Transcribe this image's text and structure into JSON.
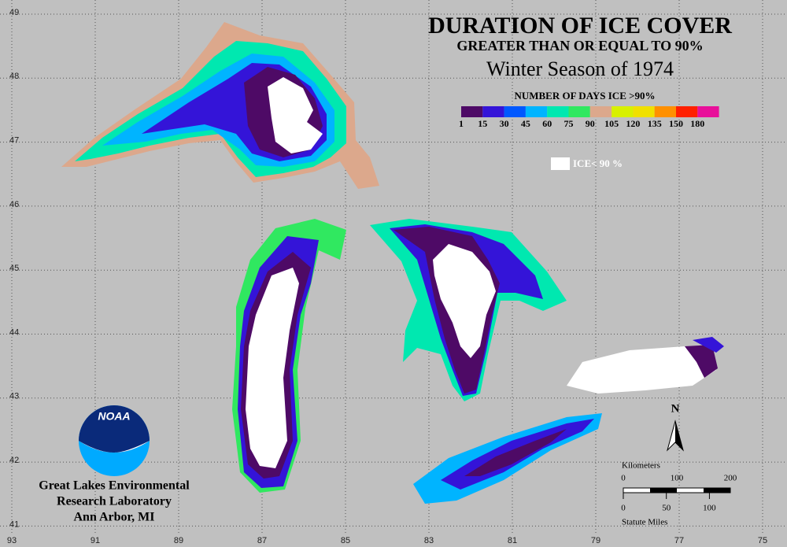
{
  "map": {
    "title": "DURATION OF ICE COVER",
    "subtitle": "GREATER THAN OR EQUAL TO 90%",
    "season": "Winter Season of 1974",
    "legend": {
      "title": "NUMBER OF DAYS ICE >90%",
      "labels": [
        1,
        15,
        30,
        45,
        60,
        75,
        90,
        105,
        120,
        135,
        150,
        180
      ],
      "colors": [
        "#4e0a66",
        "#3414d8",
        "#0058ff",
        "#00b4ff",
        "#00e8b0",
        "#30e860",
        "#dca88c",
        "#d8f000",
        "#f0e000",
        "#ff9000",
        "#ff2000",
        "#e8109a"
      ],
      "white_label": "ICE< 90 %"
    },
    "north": "N",
    "scale": {
      "km_title": "Kilometers",
      "km": [
        0,
        100,
        200
      ],
      "mi": [
        0,
        50,
        100
      ],
      "mi_title": "Statute Miles"
    },
    "logo": "NOAA",
    "lab": [
      "Great Lakes Environmental",
      "Research Laboratory",
      "Ann Arbor, MI"
    ],
    "longitudes": [
      93,
      91,
      89,
      87,
      85,
      83,
      81,
      79,
      77,
      75
    ],
    "latitudes": [
      49,
      48,
      47,
      46,
      45,
      44,
      43,
      42,
      41
    ]
  }
}
